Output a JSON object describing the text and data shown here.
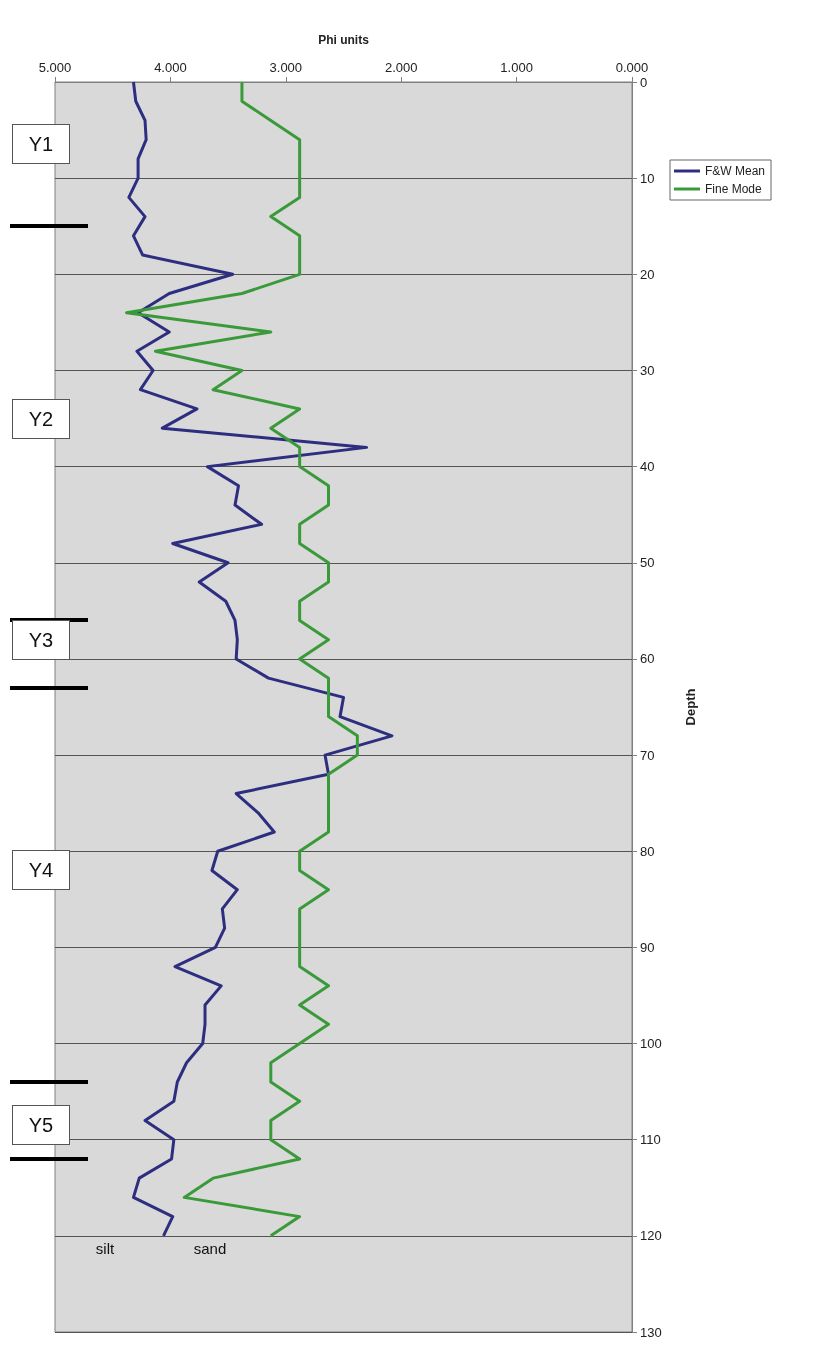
{
  "chart_data": {
    "type": "line",
    "xlabel": "Phi units",
    "ylabel": "Depth",
    "xlim": [
      5,
      0
    ],
    "xticks": [
      {
        "value": 5,
        "label": "5.000"
      },
      {
        "value": 4,
        "label": "4.000"
      },
      {
        "value": 3,
        "label": "3.000"
      },
      {
        "value": 2,
        "label": "2.000"
      },
      {
        "value": 1,
        "label": "1.000"
      },
      {
        "value": 0,
        "label": "0.000"
      }
    ],
    "ylim": [
      130,
      0
    ],
    "yticks": [
      0,
      10,
      20,
      30,
      40,
      50,
      60,
      70,
      80,
      90,
      100,
      110,
      120,
      130
    ],
    "grid": "y",
    "legend": "top right",
    "marker": "none",
    "line_style": "solid",
    "series": [
      {
        "name": "F&W Mean",
        "color": "#2e2e80",
        "x": [
          4.32,
          4.3,
          4.22,
          4.21,
          4.28,
          4.28,
          4.36,
          4.22,
          4.32,
          4.24,
          3.46,
          4.01,
          4.28,
          4.01,
          4.29,
          4.15,
          4.26,
          3.77,
          4.07,
          2.3,
          3.68,
          3.41,
          3.44,
          3.21,
          3.98,
          3.5,
          3.75,
          3.52,
          3.44,
          3.42,
          3.43,
          3.15,
          2.5,
          2.53,
          2.08,
          2.66,
          2.63,
          3.43,
          3.24,
          3.1,
          3.59,
          3.64,
          3.42,
          3.55,
          3.53,
          3.61,
          3.96,
          3.56,
          3.7,
          3.7,
          3.72,
          3.86,
          3.94,
          3.97,
          4.22,
          3.97,
          3.99,
          4.27,
          4.32,
          3.98,
          4.06
        ],
        "values": [
          0,
          2,
          4,
          6,
          8,
          10,
          12,
          14,
          16,
          18,
          20,
          22,
          24,
          26,
          28,
          30,
          32,
          34,
          36,
          38,
          40,
          42,
          44,
          46,
          48,
          50,
          52,
          54,
          56,
          58,
          60,
          62,
          64,
          66,
          68,
          70,
          72,
          74,
          76,
          78,
          80,
          82,
          84,
          86,
          88,
          90,
          92,
          94,
          96,
          98,
          100,
          102,
          104,
          106,
          108,
          110,
          112,
          114,
          116,
          118,
          120
        ]
      },
      {
        "name": "Fine Mode",
        "color": "#3a9a3a",
        "x": [
          3.38,
          3.38,
          3.13,
          2.88,
          2.88,
          2.88,
          2.88,
          3.13,
          2.88,
          2.88,
          2.88,
          3.38,
          4.38,
          3.13,
          4.13,
          3.38,
          3.63,
          2.88,
          3.13,
          2.88,
          2.88,
          2.63,
          2.63,
          2.88,
          2.88,
          2.63,
          2.63,
          2.88,
          2.88,
          2.63,
          2.88,
          2.63,
          2.63,
          2.63,
          2.38,
          2.38,
          2.63,
          2.63,
          2.63,
          2.63,
          2.88,
          2.88,
          2.63,
          2.88,
          2.88,
          2.88,
          2.88,
          2.63,
          2.88,
          2.63,
          2.88,
          3.13,
          3.13,
          2.88,
          3.13,
          3.13,
          2.88,
          3.63,
          3.88,
          2.88,
          3.13
        ],
        "values": [
          0,
          2,
          4,
          6,
          8,
          10,
          12,
          14,
          16,
          18,
          20,
          22,
          24,
          26,
          28,
          30,
          32,
          34,
          36,
          38,
          40,
          42,
          44,
          46,
          48,
          50,
          52,
          54,
          56,
          58,
          60,
          62,
          64,
          66,
          68,
          70,
          72,
          74,
          76,
          78,
          80,
          82,
          84,
          86,
          88,
          90,
          92,
          94,
          96,
          98,
          100,
          102,
          104,
          106,
          108,
          110,
          112,
          114,
          116,
          118,
          120
        ]
      }
    ],
    "annotations": [
      "Y1",
      "Y2",
      "Y3",
      "Y4",
      "Y5",
      "silt",
      "sand"
    ]
  }
}
